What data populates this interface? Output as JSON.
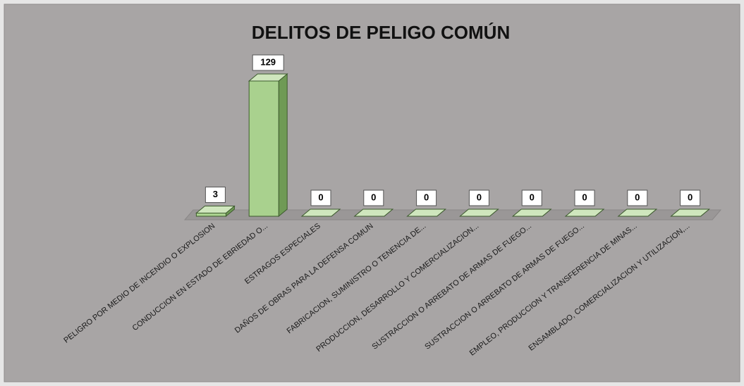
{
  "chart_data": {
    "type": "bar3d",
    "title": "DELITOS DE PELIGO COMÚN",
    "categories": [
      "PELIGRO POR MEDIO DE INCENDIO O EXPLOSION",
      "CONDUCCION EN ESTADO DE EBRIEDAD O...",
      "ESTRAGOS ESPECIALES",
      "DAÑOS DE OBRAS PARA LA DEFENSA COMUN",
      "FABRICACION, SUMINISTRO O TENENCIA DE...",
      "PRODUCCION, DESARROLLO Y COMERCIALIZACION...",
      "SUSTRACCION O ARREBATO DE ARMAS DE FUEGO...",
      "SUSTRACCION O ARREBATO DE ARMAS DE FUEGO...",
      "EMPLEO, PRODUCCION Y TRANSFERENCIA DE MINAS...",
      "ENSAMBLADO, COMERCIALIZACION Y UTILIZACION,..."
    ],
    "values": [
      3,
      129,
      0,
      0,
      0,
      0,
      0,
      0,
      0,
      0
    ],
    "color": "#a9d18e"
  }
}
